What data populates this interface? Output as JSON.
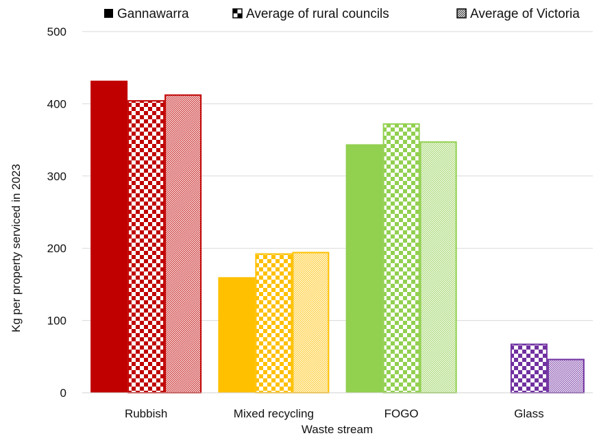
{
  "chart_data": {
    "type": "bar",
    "title": "",
    "xlabel": "Waste stream",
    "ylabel": "Kg per property serviced in 2023",
    "ylim": [
      0,
      500
    ],
    "yticks": [
      0,
      100,
      200,
      300,
      400,
      500
    ],
    "grid": true,
    "legend_position": "top",
    "categories": [
      "Rubbish",
      "Mixed recycling",
      "FOGO",
      "Glass"
    ],
    "category_colors": [
      "#C00000",
      "#FFC000",
      "#92D050",
      "#7030A0"
    ],
    "series": [
      {
        "name": "Gannawarra",
        "pattern": "solid",
        "values": [
          432,
          160,
          344,
          null
        ]
      },
      {
        "name": "Average of rural councils",
        "pattern": "checkerboard",
        "values": [
          405,
          193,
          373,
          68
        ]
      },
      {
        "name": "Average of Victoria",
        "pattern": "diagonal-hatch",
        "values": [
          413,
          195,
          348,
          47
        ]
      }
    ]
  }
}
